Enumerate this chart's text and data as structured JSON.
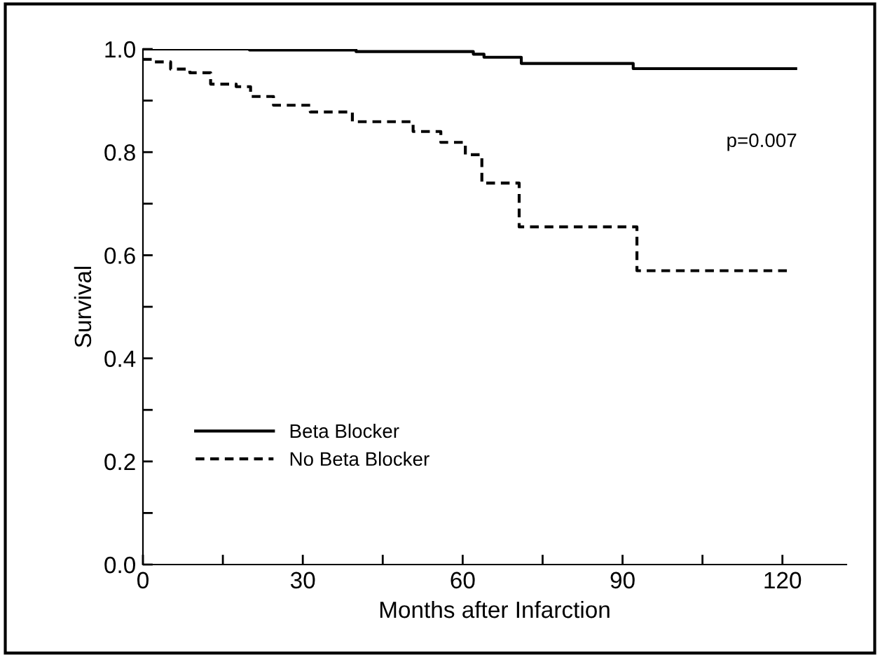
{
  "chart_data": {
    "type": "step",
    "xlabel": "Months after Infarction",
    "ylabel": "Survival",
    "xlim": [
      0,
      132
    ],
    "ylim": [
      0,
      1.0
    ],
    "xticks": [
      0,
      {
        "value": 15,
        "label": null
      },
      30,
      {
        "value": 45,
        "label": null
      },
      60,
      {
        "value": 75,
        "label": null
      },
      90,
      {
        "value": 105,
        "label": null
      },
      120
    ],
    "yticks": [
      {
        "value": 0,
        "label": "0.0"
      },
      {
        "value": 0.1,
        "label": null
      },
      {
        "value": 0.2,
        "label": "0.2"
      },
      {
        "value": 0.3,
        "label": null
      },
      {
        "value": 0.4,
        "label": "0.4"
      },
      {
        "value": 0.5,
        "label": null
      },
      {
        "value": 0.6,
        "label": "0.6"
      },
      {
        "value": 0.7,
        "label": null
      },
      {
        "value": 0.8,
        "label": "0.8"
      },
      {
        "value": 0.9,
        "label": null
      },
      {
        "value": 1.0,
        "label": "1.0"
      }
    ],
    "grid": false,
    "legend": "bottom left",
    "annotations": [
      "p=0.007"
    ],
    "series": [
      {
        "name": "Beta Blocker",
        "color": "#000000",
        "line_style": "solid",
        "x": [
          0,
          20,
          40,
          62,
          64,
          71,
          92,
          122.5
        ],
        "values": [
          1.0,
          0.998,
          0.995,
          0.99,
          0.984,
          0.972,
          0.962,
          0.962
        ]
      },
      {
        "name": "No Beta Blocker",
        "color": "#000000",
        "line_style": "dashed",
        "x": [
          0,
          1.8,
          5.2,
          8.8,
          12.7,
          17.5,
          20.2,
          24.5,
          31.4,
          39.3,
          50.7,
          55.9,
          60.5,
          63.6,
          70.6,
          92.7,
          121.2
        ],
        "values": [
          0.98,
          0.975,
          0.961,
          0.954,
          0.932,
          0.927,
          0.908,
          0.891,
          0.878,
          0.859,
          0.84,
          0.819,
          0.795,
          0.74,
          0.655,
          0.57,
          0.57
        ]
      }
    ]
  }
}
